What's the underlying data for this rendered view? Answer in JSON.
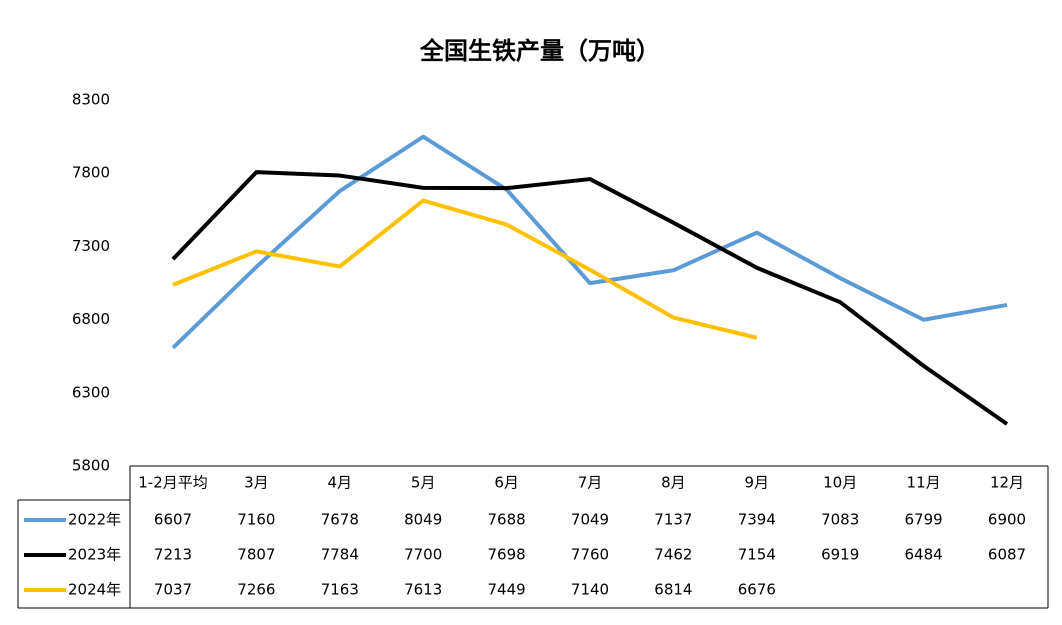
{
  "chart_data": {
    "type": "line",
    "title": "全国生铁产量（万吨）",
    "categories": [
      "1-2月平均",
      "3月",
      "4月",
      "5月",
      "6月",
      "7月",
      "8月",
      "9月",
      "10月",
      "11月",
      "12月"
    ],
    "series": [
      {
        "name": "2022年",
        "color": "#5b9bd5",
        "values": [
          6607,
          7160,
          7678,
          8049,
          7688,
          7049,
          7137,
          7394,
          7083,
          6799,
          6900
        ]
      },
      {
        "name": "2023年",
        "color": "#000000",
        "values": [
          7213,
          7807,
          7784,
          7700,
          7698,
          7760,
          7462,
          7154,
          6919,
          6484,
          6087
        ]
      },
      {
        "name": "2024年",
        "color": "#ffc000",
        "values": [
          7037,
          7266,
          7163,
          7613,
          7449,
          7140,
          6814,
          6676,
          null,
          null,
          null
        ]
      }
    ],
    "ylim": [
      5800,
      8300
    ],
    "yticks": [
      5800,
      6300,
      6800,
      7300,
      7800,
      8300
    ],
    "grid": false
  }
}
